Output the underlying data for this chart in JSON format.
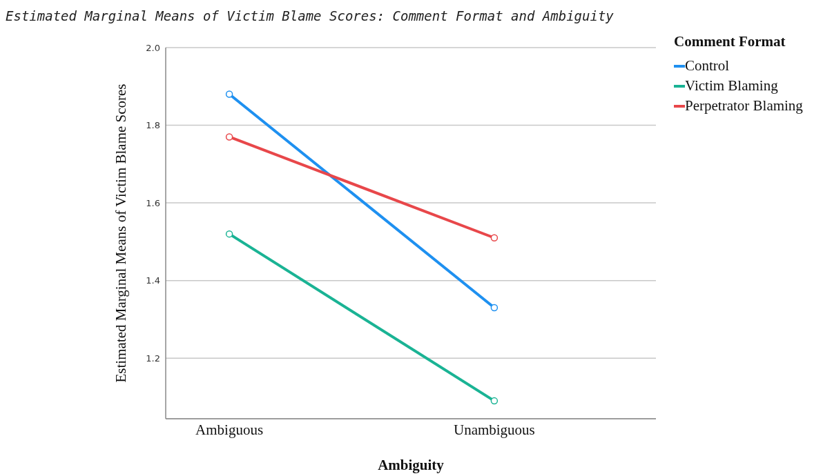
{
  "chart_data": {
    "type": "line",
    "title": "Estimated Marginal Means of Victim Blame Scores: Comment Format and Ambiguity",
    "xlabel": "Ambiguity",
    "ylabel": "Estimated Marginal Means of Victim Blame Scores",
    "legend_title": "Comment Format",
    "categories": [
      "Ambiguous",
      "Unambiguous"
    ],
    "series": [
      {
        "name": "Control",
        "color": "#1e90f0",
        "values": [
          1.88,
          1.33
        ]
      },
      {
        "name": "Victim Blaming",
        "color": "#1ab394",
        "values": [
          1.52,
          1.09
        ]
      },
      {
        "name": "Perpetrator Blaming",
        "color": "#e8474a",
        "values": [
          1.77,
          1.51
        ]
      }
    ],
    "ylim": [
      1.044,
      2.0
    ],
    "yticks": [
      1.2,
      1.4,
      1.6,
      1.8,
      {
        "value": 2,
        "label": "2.0"
      }
    ],
    "grid": "y",
    "legend": "top right",
    "marker": "circle",
    "line_style": "solid"
  }
}
